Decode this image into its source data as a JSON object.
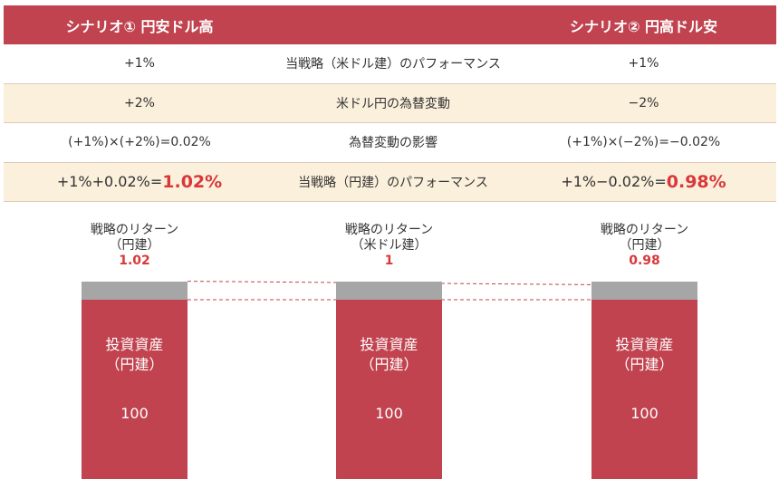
{
  "table": {
    "header": {
      "left": "シナリオ① 円安ドル高",
      "middle": "",
      "right": "シナリオ② 円高ドル安"
    },
    "rows": [
      {
        "left": "+1%",
        "middle": "当戦略（米ドル建）のパフォーマンス",
        "right": "+1%"
      },
      {
        "left": "+2%",
        "middle": "米ドル円の為替変動",
        "right": "−2%"
      },
      {
        "left": "(+1%)×(+2%)=0.02%",
        "middle": "為替変動の影響",
        "right": "(+1%)×(−2%)=−0.02%"
      }
    ],
    "result": {
      "left_prefix": "+1%+0.02%=",
      "left_value": "1.02%",
      "middle": "当戦略（円建）のパフォーマンス",
      "right_prefix": "+1%−0.02%=",
      "right_value": "0.98%"
    }
  },
  "colors": {
    "header_bg": "#c0434f",
    "shaded_row": "#fbf0dc",
    "accent": "#d9383a",
    "bar": "#c0434f",
    "bar_cap": "#a6a6a6"
  },
  "chart_data": {
    "type": "bar",
    "bars": [
      {
        "label_line1": "戦略のリターン",
        "label_line2": "（円建）",
        "value_label": "1.02",
        "value": 1.02,
        "base_line1": "投資資産",
        "base_line2": "（円建）",
        "base_value": "100"
      },
      {
        "label_line1": "戦略のリターン",
        "label_line2": "（米ドル建）",
        "value_label": "1",
        "value": 1,
        "base_line1": "投資資産",
        "base_line2": "（円建）",
        "base_value": "100"
      },
      {
        "label_line1": "戦略のリターン",
        "label_line2": "（円建）",
        "value_label": "0.98",
        "value": 0.98,
        "base_line1": "投資資産",
        "base_line2": "（円建）",
        "base_value": "100"
      }
    ]
  }
}
